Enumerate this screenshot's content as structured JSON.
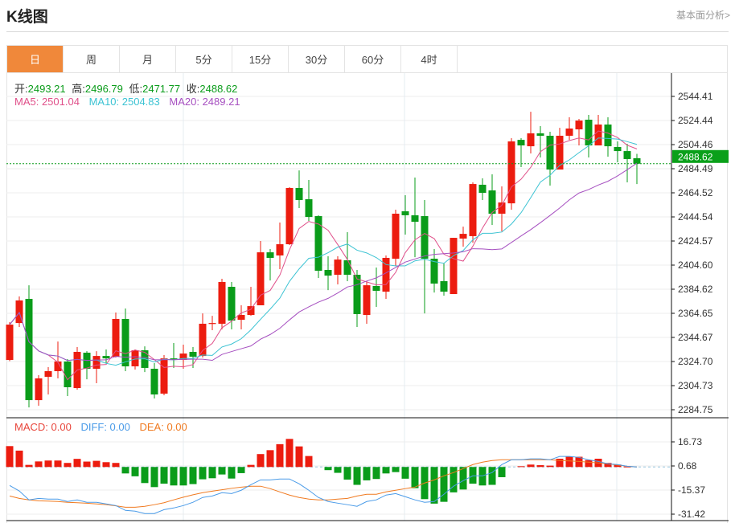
{
  "header": {
    "title": "K线图",
    "link": "基本面分析>"
  },
  "tabs": [
    {
      "label": "日",
      "active": true
    },
    {
      "label": "周"
    },
    {
      "label": "月"
    },
    {
      "label": "5分"
    },
    {
      "label": "15分"
    },
    {
      "label": "30分"
    },
    {
      "label": "60分"
    },
    {
      "label": "4时"
    }
  ],
  "ohlc_legend": {
    "open_label": "开:",
    "open": "2493.21",
    "high_label": "高:",
    "high": "2496.79",
    "low_label": "低:",
    "low": "2471.77",
    "close_label": "收:",
    "close": "2488.62"
  },
  "ma_legend": {
    "ma5": "MA5: 2501.04",
    "ma10": "MA10: 2504.83",
    "ma20": "MA20: 2489.21"
  },
  "macd_legend": {
    "macd": "MACD: 0.00",
    "diff": "DIFF: 0.00",
    "dea": "DEA: 0.00"
  },
  "colors": {
    "up": "#ec1c0f",
    "down": "#0a9c1a",
    "accent": "#f0883a",
    "ma5": "#e0508a",
    "ma10": "#3cc3d3",
    "ma20": "#a64fc0",
    "diff": "#4a9be8",
    "dea": "#f07a20",
    "macd_label": "#e8463c"
  },
  "chart_data": [
    {
      "type": "candlestick",
      "fields": [
        "open",
        "high",
        "low",
        "close"
      ],
      "ohlc": [
        [
          2326.0,
          2357.3,
          2325.0,
          2355.3
        ],
        [
          2356.6,
          2378.6,
          2353.3,
          2375.3
        ],
        [
          2376.6,
          2387.9,
          2286.7,
          2292.7
        ],
        [
          2292.7,
          2313.4,
          2288.1,
          2310.7
        ],
        [
          2312.0,
          2320.0,
          2297.4,
          2316.7
        ],
        [
          2316.7,
          2341.3,
          2310.7,
          2324.7
        ],
        [
          2324.7,
          2326.7,
          2296.1,
          2303.4
        ],
        [
          2302.7,
          2336.7,
          2301.4,
          2332.7
        ],
        [
          2332.0,
          2333.3,
          2310.0,
          2318.7
        ],
        [
          2318.7,
          2333.3,
          2306.7,
          2329.3
        ],
        [
          2329.3,
          2334.7,
          2323.4,
          2327.3
        ],
        [
          2328.7,
          2365.3,
          2328.0,
          2360.0
        ],
        [
          2360.0,
          2368.6,
          2316.7,
          2320.7
        ],
        [
          2320.7,
          2334.7,
          2318.0,
          2334.0
        ],
        [
          2334.0,
          2337.3,
          2316.0,
          2319.4
        ],
        [
          2318.7,
          2323.4,
          2294.1,
          2297.4
        ],
        [
          2298.1,
          2330.0,
          2296.7,
          2327.3
        ],
        [
          2327.3,
          2340.0,
          2319.4,
          2326.0
        ],
        [
          2326.0,
          2338.7,
          2318.7,
          2331.3
        ],
        [
          2332.7,
          2336.7,
          2319.4,
          2328.7
        ],
        [
          2329.3,
          2364.6,
          2328.0,
          2356.0
        ],
        [
          2356.0,
          2362.6,
          2350.7,
          2356.6
        ],
        [
          2356.0,
          2393.3,
          2351.3,
          2390.6
        ],
        [
          2386.6,
          2390.6,
          2351.3,
          2358.6
        ],
        [
          2359.3,
          2371.3,
          2351.3,
          2363.3
        ],
        [
          2363.3,
          2386.6,
          2362.6,
          2370.6
        ],
        [
          2371.3,
          2424.6,
          2371.3,
          2415.2
        ],
        [
          2415.2,
          2417.9,
          2391.9,
          2410.6
        ],
        [
          2412.6,
          2439.9,
          2401.3,
          2421.9
        ],
        [
          2421.9,
          2469.2,
          2421.2,
          2468.5
        ],
        [
          2468.5,
          2483.1,
          2451.9,
          2458.5
        ],
        [
          2459.2,
          2475.2,
          2441.2,
          2444.5
        ],
        [
          2445.2,
          2445.9,
          2393.9,
          2399.9
        ],
        [
          2400.6,
          2411.9,
          2383.9,
          2395.9
        ],
        [
          2396.6,
          2411.9,
          2388.6,
          2409.2
        ],
        [
          2408.6,
          2431.9,
          2391.3,
          2396.6
        ],
        [
          2396.6,
          2400.6,
          2353.3,
          2364.0
        ],
        [
          2363.3,
          2391.3,
          2356.0,
          2387.9
        ],
        [
          2387.3,
          2402.6,
          2370.0,
          2383.3
        ],
        [
          2382.6,
          2412.6,
          2376.6,
          2410.6
        ],
        [
          2409.9,
          2450.5,
          2403.9,
          2447.2
        ],
        [
          2449.2,
          2462.5,
          2429.9,
          2445.9
        ],
        [
          2445.9,
          2477.2,
          2411.2,
          2440.5
        ],
        [
          2445.2,
          2458.5,
          2364.6,
          2409.9
        ],
        [
          2409.9,
          2417.9,
          2381.9,
          2389.3
        ],
        [
          2391.3,
          2405.9,
          2379.3,
          2382.6
        ],
        [
          2380.6,
          2427.2,
          2380.6,
          2427.2
        ],
        [
          2426.6,
          2436.5,
          2419.9,
          2430.5
        ],
        [
          2428.6,
          2473.2,
          2423.2,
          2471.8
        ],
        [
          2471.2,
          2476.5,
          2458.5,
          2464.5
        ],
        [
          2466.5,
          2479.8,
          2437.9,
          2447.2
        ],
        [
          2447.2,
          2469.8,
          2432.5,
          2456.5
        ],
        [
          2455.8,
          2509.8,
          2450.5,
          2507.1
        ],
        [
          2508.4,
          2509.8,
          2485.8,
          2503.8
        ],
        [
          2503.1,
          2531.7,
          2497.1,
          2513.8
        ],
        [
          2513.8,
          2519.8,
          2493.8,
          2511.8
        ],
        [
          2511.8,
          2515.1,
          2470.5,
          2483.8
        ],
        [
          2483.8,
          2518.4,
          2483.8,
          2511.8
        ],
        [
          2511.8,
          2527.1,
          2508.4,
          2517.8
        ],
        [
          2517.1,
          2525.8,
          2503.8,
          2524.4
        ],
        [
          2525.1,
          2529.1,
          2493.8,
          2503.8
        ],
        [
          2503.8,
          2529.1,
          2503.8,
          2521.1
        ],
        [
          2521.1,
          2527.1,
          2494.5,
          2503.1
        ],
        [
          2502.5,
          2507.1,
          2489.8,
          2499.1
        ],
        [
          2499.1,
          2505.1,
          2473.2,
          2492.5
        ],
        [
          2493.21,
          2496.79,
          2471.77,
          2488.62
        ]
      ],
      "moving_averages": [
        5,
        10,
        20
      ],
      "last_price": "2488.62",
      "yticks": [
        "2544.41",
        "2524.44",
        "2504.46",
        "2484.49",
        "2464.52",
        "2444.54",
        "2424.57",
        "2404.60",
        "2384.62",
        "2364.65",
        "2344.67",
        "2324.70",
        "2304.73",
        "2284.75"
      ],
      "ylim": [
        2284.75,
        2544.41
      ],
      "grid": true
    },
    {
      "type": "bar+line",
      "macd": [
        13.9,
        10.9,
        1.4,
        3.7,
        4.3,
        4.3,
        2.7,
        5.4,
        3.6,
        4.1,
        3.2,
        2.7,
        -4.3,
        -6.2,
        -10.7,
        -13.4,
        -11.1,
        -12.3,
        -12.3,
        -11.4,
        -8.2,
        -7.5,
        -5.0,
        -7.7,
        -4.1,
        1.4,
        8.6,
        11.2,
        15.2,
        18.7,
        13.7,
        7.3,
        0,
        -2.1,
        -3.9,
        -8.4,
        -11.9,
        -8.9,
        -8.0,
        -4.3,
        -3.4,
        -7.8,
        -14.1,
        -21.4,
        -24.4,
        -23.2,
        -16.9,
        -15.0,
        -11.1,
        -12.3,
        -11.9,
        -6.8,
        0,
        0.5,
        1.6,
        1.2,
        0.9,
        5.5,
        6.8,
        6.8,
        4.6,
        5.5,
        2.7,
        1.6,
        0.3,
        0
      ],
      "diff": [
        -12.3,
        -16.0,
        -21.9,
        -20.9,
        -21.4,
        -21.4,
        -23.0,
        -21.9,
        -23.5,
        -23.5,
        -24.6,
        -25.7,
        -28.9,
        -29.4,
        -31.0,
        -31.0,
        -28.4,
        -27.3,
        -25.7,
        -23.5,
        -20.3,
        -19.3,
        -17.1,
        -17.7,
        -15.5,
        -11.8,
        -8.6,
        -8.6,
        -8.0,
        -8.0,
        -11.2,
        -15.5,
        -20.3,
        -23.0,
        -24.1,
        -25.1,
        -26.2,
        -23.0,
        -21.9,
        -18.7,
        -17.7,
        -19.8,
        -21.9,
        -23.5,
        -23.0,
        -18.2,
        -12.8,
        -9.1,
        -5.9,
        -5.9,
        -3.7,
        1.6,
        4.8,
        4.8,
        5.4,
        5.4,
        4.8,
        7.0,
        7.0,
        6.4,
        4.8,
        3.7,
        2.1,
        1.6,
        0.5,
        0
      ],
      "dea": [
        -19.3,
        -20.9,
        -21.9,
        -22.5,
        -22.7,
        -23.0,
        -23.5,
        -23.8,
        -24.1,
        -24.6,
        -25.1,
        -25.9,
        -26.8,
        -26.8,
        -26.2,
        -25.1,
        -23.8,
        -21.9,
        -20.1,
        -18.5,
        -17.1,
        -16.1,
        -15.2,
        -14.2,
        -13.4,
        -12.8,
        -12.8,
        -14.4,
        -16.6,
        -18.7,
        -20.3,
        -21.4,
        -21.9,
        -21.9,
        -21.4,
        -20.9,
        -19.3,
        -18.2,
        -18.2,
        -16.6,
        -15.5,
        -14.4,
        -13.4,
        -10.7,
        -8.6,
        -5.9,
        -3.7,
        -1.1,
        1.6,
        3.2,
        4.3,
        4.8,
        4.8,
        4.8,
        4.8,
        4.8,
        4.8,
        4.3,
        4.0,
        3.7,
        3.2,
        2.7,
        2.1,
        1.3,
        0.5,
        0
      ],
      "yticks": [
        "16.73",
        "0.68",
        "-15.37",
        "-31.42"
      ],
      "ylim": [
        -36,
        24
      ],
      "grid": true
    }
  ]
}
